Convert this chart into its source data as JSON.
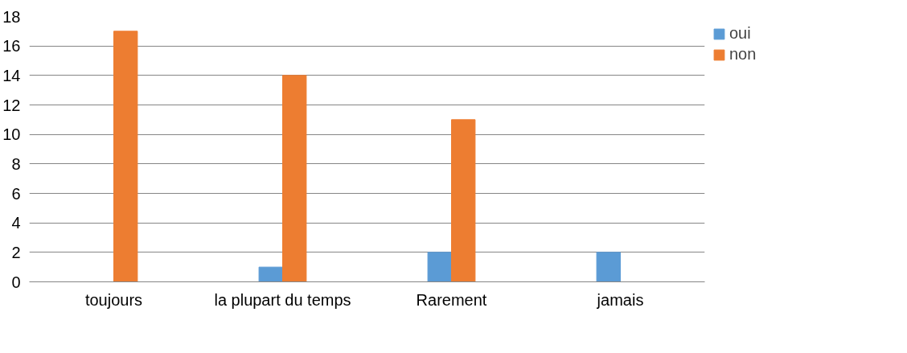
{
  "chart_data": {
    "type": "bar",
    "categories": [
      "toujours",
      "la plupart du temps",
      "Rarement",
      "jamais"
    ],
    "series": [
      {
        "name": "oui",
        "color": "#5b9bd5",
        "values": [
          0,
          1,
          2,
          2
        ]
      },
      {
        "name": "non",
        "color": "#ed7d31",
        "values": [
          17,
          14,
          11,
          0
        ]
      }
    ],
    "ylim": [
      0,
      18
    ],
    "yticks": [
      0,
      2,
      4,
      6,
      8,
      10,
      12,
      14,
      16,
      18
    ],
    "grid": "y",
    "legend": "right"
  }
}
